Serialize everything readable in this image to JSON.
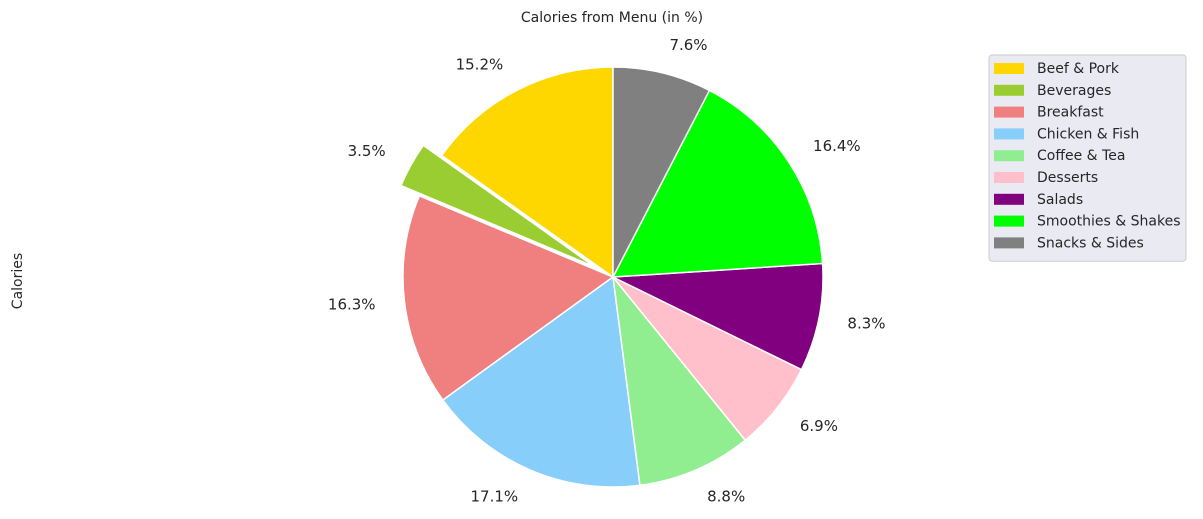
{
  "chart_data": {
    "type": "pie",
    "title": "Calories from Menu (in %)",
    "ylabel": "Calories",
    "legend_position": "upper-right outside",
    "start_angle_deg": 90,
    "direction": "counterclockwise",
    "slices": [
      {
        "label": "Beef & Pork",
        "value": 15.2,
        "pct_label": "15.2%",
        "color": "#ffd700",
        "explode": false
      },
      {
        "label": "Beverages",
        "value": 3.5,
        "pct_label": "3.5%",
        "color": "#9acd32",
        "explode": true
      },
      {
        "label": "Breakfast",
        "value": 16.3,
        "pct_label": "16.3%",
        "color": "#f08080",
        "explode": false
      },
      {
        "label": "Chicken & Fish",
        "value": 17.1,
        "pct_label": "17.1%",
        "color": "#87cefa",
        "explode": false
      },
      {
        "label": "Coffee & Tea",
        "value": 8.8,
        "pct_label": "8.8%",
        "color": "#90ee90",
        "explode": false
      },
      {
        "label": "Desserts",
        "value": 6.9,
        "pct_label": "6.9%",
        "color": "#ffc0cb",
        "explode": false
      },
      {
        "label": "Salads",
        "value": 8.3,
        "pct_label": "8.3%",
        "color": "#800080",
        "explode": false
      },
      {
        "label": "Smoothies & Shakes",
        "value": 16.4,
        "pct_label": "16.4%",
        "color": "#00ff00",
        "explode": false
      },
      {
        "label": "Snacks & Sides",
        "value": 7.6,
        "pct_label": "7.6%",
        "color": "#808080",
        "explode": false
      }
    ],
    "legend_background": "#eaeaf2"
  }
}
